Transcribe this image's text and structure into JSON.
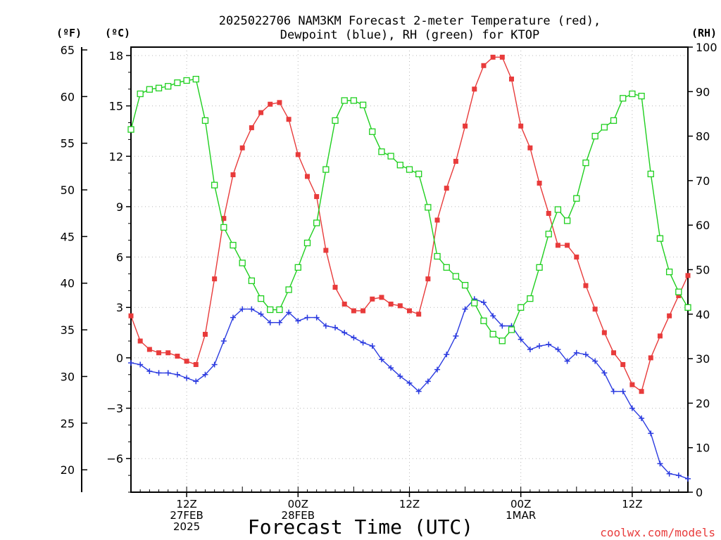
{
  "chart_data": {
    "type": "line",
    "title_line1": "2025022706 NAM3KM Forecast 2-meter Temperature (red),",
    "title_line2": "Dewpoint (blue), RH (green) for KTOP",
    "left_outer_unit": "(ºF)",
    "left_inner_unit": "(ºC)",
    "right_unit": "(RH)",
    "xlabel": "Forecast Time (UTC)",
    "credit": "coolwx.com/models",
    "x_start_hour": 6,
    "x_end_hour": 66,
    "x_ticks": [
      {
        "hour": 12,
        "lines": [
          "12Z",
          "27FEB",
          "2025"
        ]
      },
      {
        "hour": 24,
        "lines": [
          "00Z",
          "28FEB"
        ]
      },
      {
        "hour": 36,
        "lines": [
          "12Z"
        ]
      },
      {
        "hour": 48,
        "lines": [
          "00Z",
          "1MAR"
        ]
      },
      {
        "hour": 60,
        "lines": [
          "12Z"
        ]
      }
    ],
    "y_celsius_range": [
      -8,
      18.5
    ],
    "y_celsius_ticks": [
      18,
      15,
      12,
      9,
      6,
      3,
      0,
      -3,
      -6
    ],
    "y_fahrenheit_ticks": [
      65,
      60,
      55,
      50,
      45,
      40,
      35,
      30,
      25,
      20
    ],
    "y_rh_range": [
      0,
      100
    ],
    "y_rh_ticks": [
      100,
      90,
      80,
      70,
      60,
      50,
      40,
      30,
      20,
      10,
      0
    ],
    "grid": true,
    "colors": {
      "temperature": "#e83b3b",
      "dewpoint": "#2b3be0",
      "rh": "#1fcf1f"
    },
    "series": [
      {
        "name": "Temperature",
        "axis": "celsius",
        "marker": "filled-square",
        "values": [
          2.5,
          1.0,
          0.5,
          0.3,
          0.3,
          0.1,
          -0.2,
          -0.4,
          1.4,
          4.7,
          8.3,
          10.9,
          12.5,
          13.7,
          14.6,
          15.1,
          15.2,
          14.2,
          12.1,
          10.8,
          9.6,
          6.4,
          4.2,
          3.2,
          2.8,
          2.8,
          3.5,
          3.6,
          3.2,
          3.1,
          2.8,
          2.6,
          4.7,
          8.2,
          10.1,
          11.7,
          13.8,
          16.0,
          17.4,
          17.9,
          17.9,
          16.6,
          13.8,
          12.5,
          10.4,
          8.6,
          6.7,
          6.7,
          6.0,
          4.3,
          2.9,
          1.5,
          0.3,
          -0.4,
          -1.6,
          -2.0,
          0.0,
          1.3,
          2.5,
          3.7,
          4.9
        ]
      },
      {
        "name": "Dewpoint",
        "axis": "celsius",
        "marker": "plus",
        "values": [
          -0.3,
          -0.4,
          -0.8,
          -0.9,
          -0.9,
          -1.0,
          -1.2,
          -1.4,
          -1.0,
          -0.4,
          1.0,
          2.4,
          2.9,
          2.9,
          2.6,
          2.1,
          2.1,
          2.7,
          2.2,
          2.4,
          2.4,
          1.9,
          1.8,
          1.5,
          1.2,
          0.9,
          0.7,
          -0.1,
          -0.6,
          -1.1,
          -1.5,
          -2.0,
          -1.4,
          -0.7,
          0.2,
          1.3,
          2.9,
          3.5,
          3.3,
          2.5,
          1.9,
          1.9,
          1.1,
          0.5,
          0.7,
          0.8,
          0.5,
          -0.2,
          0.3,
          0.2,
          -0.2,
          -0.9,
          -2.0,
          -2.0,
          -3.0,
          -3.6,
          -4.5,
          -6.3,
          -6.9,
          -7.0,
          -7.2
        ]
      },
      {
        "name": "RH",
        "axis": "rh",
        "marker": "open-square",
        "values": [
          81.5,
          89.5,
          90.5,
          90.8,
          91.2,
          92.0,
          92.5,
          92.8,
          83.5,
          69.0,
          59.5,
          55.5,
          51.5,
          47.5,
          43.5,
          41.0,
          41.0,
          45.5,
          50.5,
          56.0,
          60.5,
          72.5,
          83.5,
          88.0,
          88.0,
          87.0,
          81.0,
          76.5,
          75.5,
          73.5,
          72.5,
          71.5,
          64.0,
          53.0,
          50.5,
          48.5,
          46.5,
          42.5,
          38.5,
          35.5,
          34.0,
          36.5,
          41.5,
          43.5,
          50.5,
          58.0,
          63.5,
          61.0,
          66.0,
          74.0,
          80.0,
          82.0,
          83.5,
          88.5,
          89.5,
          89.0,
          71.5,
          57.0,
          49.5,
          45.0,
          41.5
        ]
      }
    ]
  }
}
